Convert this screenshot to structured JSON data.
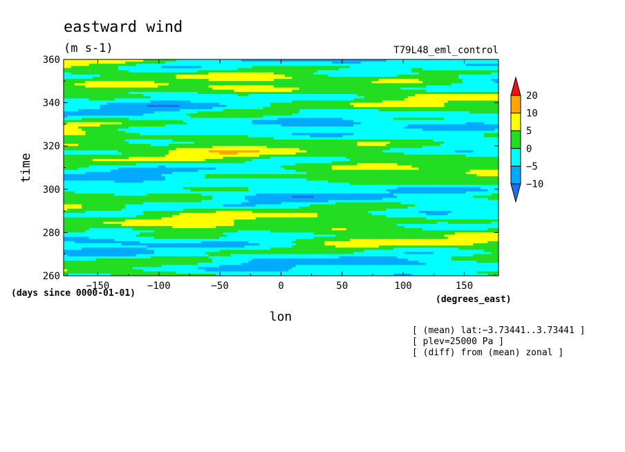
{
  "chart_data": {
    "type": "heatmap",
    "title": "eastward wind",
    "units": "(m s-1)",
    "experiment": "T79L48_eml_control",
    "xlabel": "lon",
    "xunits": "(degrees_east)",
    "ylabel": "time",
    "yunits": "(days since 0000-01-01)",
    "xlim": [
      -178,
      178
    ],
    "ylim": [
      260,
      360
    ],
    "xticks": [
      -150,
      -100,
      -50,
      0,
      50,
      100,
      150
    ],
    "xtick_labels": [
      "−150",
      "−100",
      "−50",
      "0",
      "50",
      "100",
      "150"
    ],
    "yticks": [
      260,
      280,
      300,
      320,
      340,
      360
    ],
    "ytick_labels": [
      "260",
      "280",
      "300",
      "320",
      "340",
      "360"
    ],
    "colorbar": {
      "levels": [
        -10,
        -5,
        0,
        5,
        10,
        20
      ],
      "level_labels": [
        "−10",
        "−5",
        "0",
        "5",
        "10",
        "20"
      ],
      "colors": [
        "#1e6fe8",
        "#00aaff",
        "#00ffff",
        "#22dd22",
        "#ffff00",
        "#ffa500",
        "#ee1111"
      ]
    },
    "notes": [
      "[ (mean) lat:−3.73441..3.73441 ]",
      "[ plev=25000 Pa ]",
      "[ (diff) from (mean) zonal ]"
    ]
  }
}
